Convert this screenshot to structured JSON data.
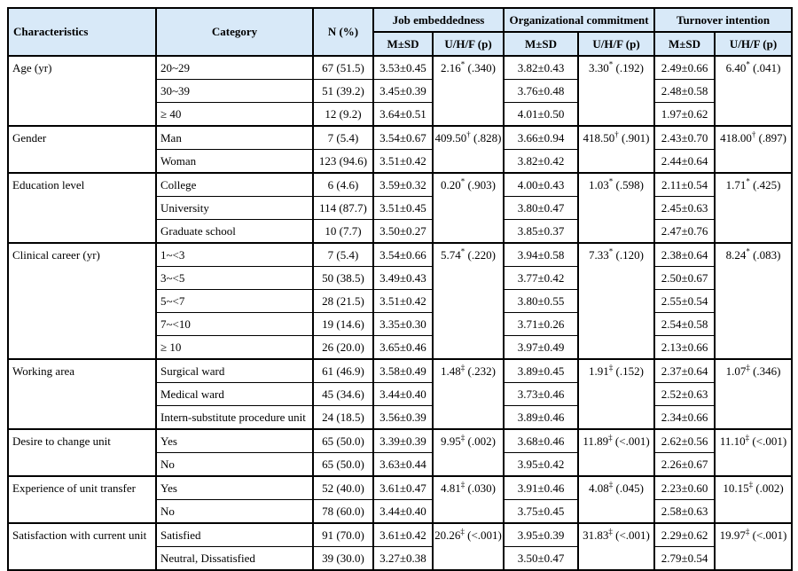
{
  "page": {
    "background": "#ffffff"
  },
  "table": {
    "style": {
      "header_bg": "#d8e9f8",
      "border_color": "#000000",
      "text_color": "#000000"
    },
    "header": {
      "characteristics": "Characteristics",
      "category": "Category",
      "n": "N (%)",
      "outcome_groups": [
        "Job embeddedness",
        "Organizational commitment",
        "Turnover intention"
      ],
      "msd_label": "M±SD",
      "stat_label": "U/H/F (p)"
    },
    "groups": [
      {
        "characteristic": "Age (yr)",
        "job_stat": {
          "value": "2.16",
          "sup": "*",
          "p": "(.340)"
        },
        "org_stat": {
          "value": "3.30",
          "sup": "*",
          "p": "(.192)"
        },
        "turn_stat": {
          "value": "6.40",
          "sup": "*",
          "p": "(.041)"
        },
        "rows": [
          {
            "category": "20~29",
            "n": "67 (51.5)",
            "job_msd": "3.53±0.45",
            "org_msd": "3.82±0.43",
            "turn_msd": "2.49±0.66"
          },
          {
            "category": "30~39",
            "n": "51 (39.2)",
            "job_msd": "3.45±0.39",
            "org_msd": "3.76±0.48",
            "turn_msd": "2.48±0.58"
          },
          {
            "category": "≥ 40",
            "n": "12 (9.2)",
            "job_msd": "3.64±0.51",
            "org_msd": "4.01±0.50",
            "turn_msd": "1.97±0.62"
          }
        ]
      },
      {
        "characteristic": "Gender",
        "job_stat": {
          "value": "409.50",
          "sup": "†",
          "p": "(.828)"
        },
        "org_stat": {
          "value": "418.50",
          "sup": "†",
          "p": "(.901)"
        },
        "turn_stat": {
          "value": "418.00",
          "sup": "†",
          "p": "(.897)"
        },
        "rows": [
          {
            "category": "Man",
            "n": "7 (5.4)",
            "job_msd": "3.54±0.67",
            "org_msd": "3.66±0.94",
            "turn_msd": "2.43±0.70"
          },
          {
            "category": "Woman",
            "n": "123 (94.6)",
            "job_msd": "3.51±0.42",
            "org_msd": "3.82±0.42",
            "turn_msd": "2.44±0.64"
          }
        ]
      },
      {
        "characteristic": "Education level",
        "job_stat": {
          "value": "0.20",
          "sup": "*",
          "p": "(.903)"
        },
        "org_stat": {
          "value": "1.03",
          "sup": "*",
          "p": "(.598)"
        },
        "turn_stat": {
          "value": "1.71",
          "sup": "*",
          "p": "(.425)"
        },
        "rows": [
          {
            "category": "College",
            "n": "6 (4.6)",
            "job_msd": "3.59±0.32",
            "org_msd": "4.00±0.43",
            "turn_msd": "2.11±0.54"
          },
          {
            "category": "University",
            "n": "114 (87.7)",
            "job_msd": "3.51±0.45",
            "org_msd": "3.80±0.47",
            "turn_msd": "2.45±0.63"
          },
          {
            "category": "Graduate school",
            "n": "10 (7.7)",
            "job_msd": "3.50±0.27",
            "org_msd": "3.85±0.37",
            "turn_msd": "2.47±0.76"
          }
        ]
      },
      {
        "characteristic": "Clinical career (yr)",
        "job_stat": {
          "value": "5.74",
          "sup": "*",
          "p": "(.220)"
        },
        "org_stat": {
          "value": "7.33",
          "sup": "*",
          "p": "(.120)"
        },
        "turn_stat": {
          "value": "8.24",
          "sup": "*",
          "p": "(.083)"
        },
        "rows": [
          {
            "category": "1~<3",
            "n": "7 (5.4)",
            "job_msd": "3.54±0.66",
            "org_msd": "3.94±0.58",
            "turn_msd": "2.38±0.64"
          },
          {
            "category": "3~<5",
            "n": "50 (38.5)",
            "job_msd": "3.49±0.43",
            "org_msd": "3.77±0.42",
            "turn_msd": "2.50±0.67"
          },
          {
            "category": "5~<7",
            "n": "28 (21.5)",
            "job_msd": "3.51±0.42",
            "org_msd": "3.80±0.55",
            "turn_msd": "2.55±0.54"
          },
          {
            "category": "7~<10",
            "n": "19 (14.6)",
            "job_msd": "3.35±0.30",
            "org_msd": "3.71±0.26",
            "turn_msd": "2.54±0.58"
          },
          {
            "category": "≥ 10",
            "n": "26 (20.0)",
            "job_msd": "3.65±0.46",
            "org_msd": "3.97±0.49",
            "turn_msd": "2.13±0.66"
          }
        ]
      },
      {
        "characteristic": "Working area",
        "job_stat": {
          "value": "1.48",
          "sup": "‡",
          "p": "(.232)"
        },
        "org_stat": {
          "value": "1.91",
          "sup": "‡",
          "p": "(.152)"
        },
        "turn_stat": {
          "value": "1.07",
          "sup": "‡",
          "p": "(.346)"
        },
        "rows": [
          {
            "category": "Surgical ward",
            "n": "61 (46.9)",
            "job_msd": "3.58±0.49",
            "org_msd": "3.89±0.45",
            "turn_msd": "2.37±0.64"
          },
          {
            "category": "Medical ward",
            "n": "45 (34.6)",
            "job_msd": "3.44±0.40",
            "org_msd": "3.73±0.46",
            "turn_msd": "2.52±0.63"
          },
          {
            "category": "Intern-substitute procedure unit",
            "n": "24 (18.5)",
            "job_msd": "3.56±0.39",
            "org_msd": "3.89±0.46",
            "turn_msd": "2.34±0.66"
          }
        ]
      },
      {
        "characteristic": "Desire to change unit",
        "job_stat": {
          "value": "9.95",
          "sup": "‡",
          "p": "(.002)"
        },
        "org_stat": {
          "value": "11.89",
          "sup": "‡",
          "p": "(<.001)"
        },
        "turn_stat": {
          "value": "11.10",
          "sup": "‡",
          "p": "(<.001)"
        },
        "rows": [
          {
            "category": "Yes",
            "n": "65 (50.0)",
            "job_msd": "3.39±0.39",
            "org_msd": "3.68±0.46",
            "turn_msd": "2.62±0.56"
          },
          {
            "category": "No",
            "n": "65 (50.0)",
            "job_msd": "3.63±0.44",
            "org_msd": "3.95±0.42",
            "turn_msd": "2.26±0.67"
          }
        ]
      },
      {
        "characteristic": "Experience of unit transfer",
        "job_stat": {
          "value": "4.81",
          "sup": "‡",
          "p": "(.030)"
        },
        "org_stat": {
          "value": "4.08",
          "sup": "‡",
          "p": "(.045)"
        },
        "turn_stat": {
          "value": "10.15",
          "sup": "‡",
          "p": "(.002)"
        },
        "rows": [
          {
            "category": "Yes",
            "n": "52 (40.0)",
            "job_msd": "3.61±0.47",
            "org_msd": "3.91±0.46",
            "turn_msd": "2.23±0.60"
          },
          {
            "category": "No",
            "n": "78 (60.0)",
            "job_msd": "3.44±0.40",
            "org_msd": "3.75±0.45",
            "turn_msd": "2.58±0.63"
          }
        ]
      },
      {
        "characteristic": "Satisfaction with current unit",
        "job_stat": {
          "value": "20.26",
          "sup": "‡",
          "p": "(<.001)"
        },
        "org_stat": {
          "value": "31.83",
          "sup": "‡",
          "p": "(<.001)"
        },
        "turn_stat": {
          "value": "19.97",
          "sup": "‡",
          "p": "(<.001)"
        },
        "rows": [
          {
            "category": "Satisfied",
            "n": "91 (70.0)",
            "job_msd": "3.61±0.42",
            "org_msd": "3.95±0.39",
            "turn_msd": "2.29±0.62"
          },
          {
            "category": "Neutral, Dissatisfied",
            "n": "39 (30.0)",
            "job_msd": "3.27±0.38",
            "org_msd": "3.50±0.47",
            "turn_msd": "2.79±0.54"
          }
        ]
      }
    ]
  }
}
